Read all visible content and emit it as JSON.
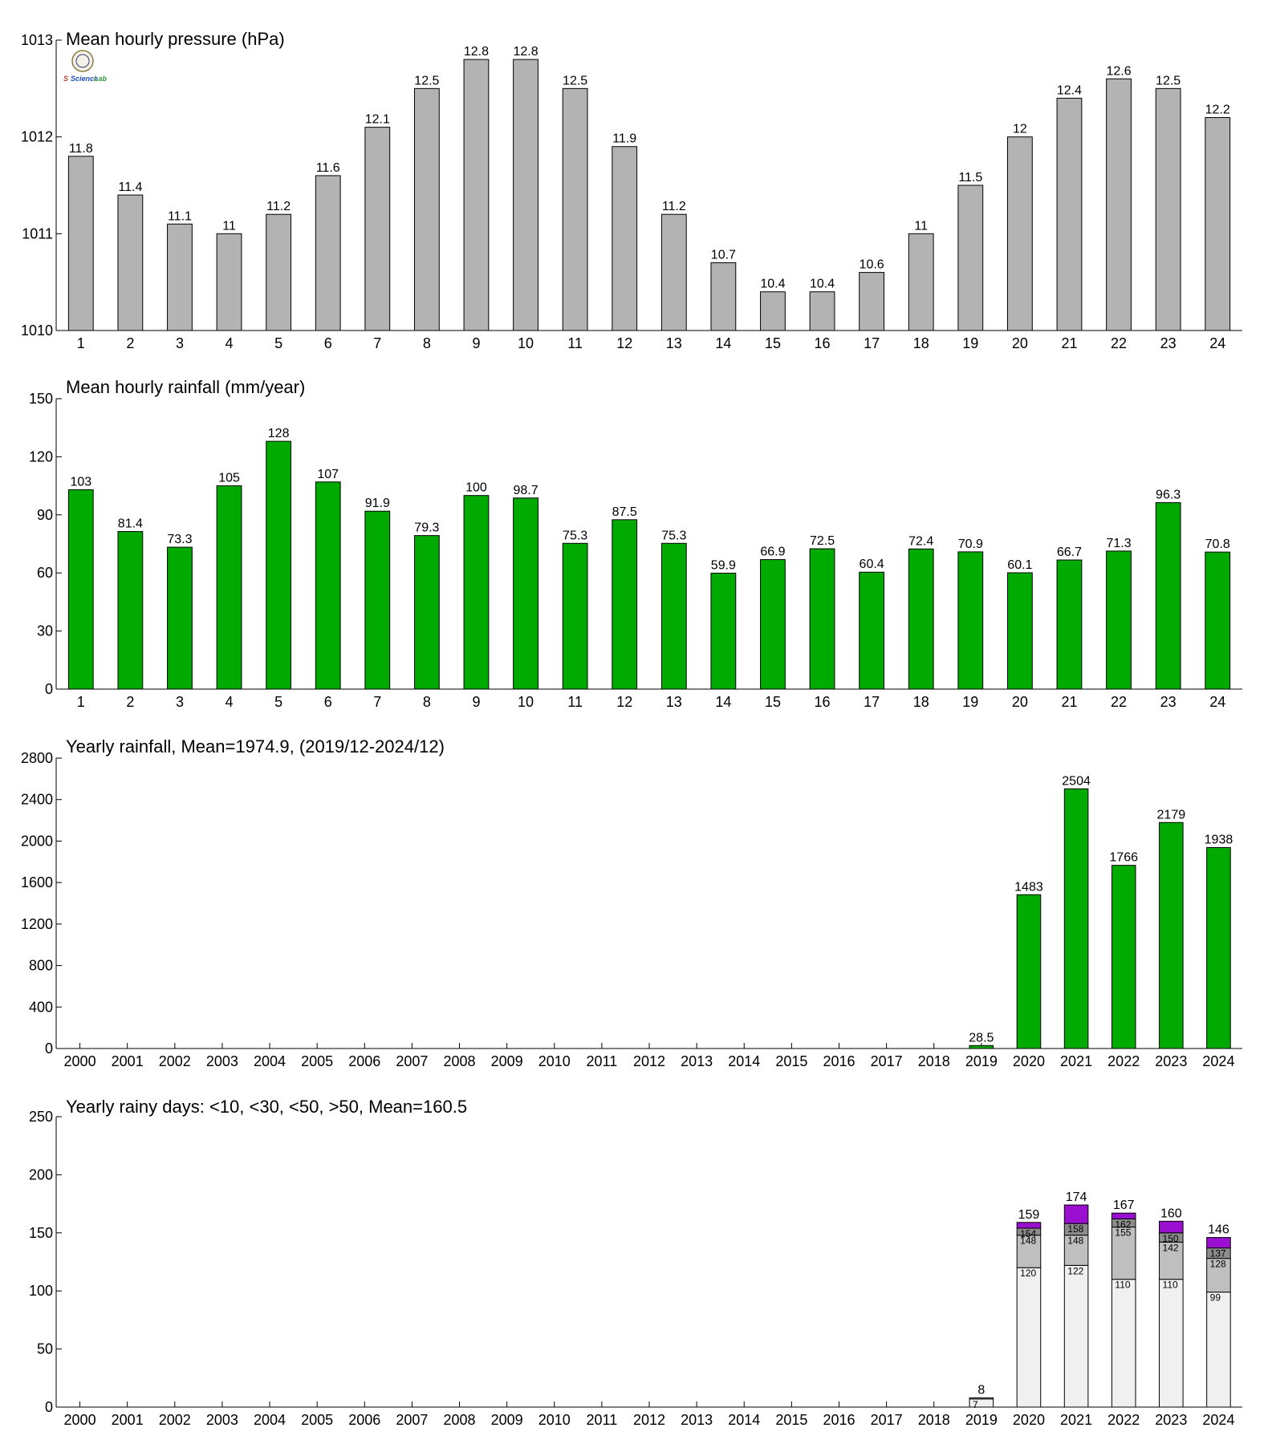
{
  "logo": {
    "name": "lab-logo",
    "text_left": "S",
    "text_mid": "Science",
    "text_right": "Lab",
    "color_left": "#c0392b",
    "color_mid": "#1f4fbf",
    "color_right": "#2e9b2e"
  },
  "colors": {
    "pressure": "#b3b3b3",
    "rain": "#00aa00",
    "days_lt10": "#f0f0f0",
    "days_lt30": "#bfbfbf",
    "days_lt50": "#8c8c8c",
    "days_gt50": "#9b10d0"
  },
  "chart_data": [
    {
      "id": "pressure",
      "type": "bar",
      "title": "Mean hourly pressure (hPa)",
      "categories": [
        "1",
        "2",
        "3",
        "4",
        "5",
        "6",
        "7",
        "8",
        "9",
        "10",
        "11",
        "12",
        "13",
        "14",
        "15",
        "16",
        "17",
        "18",
        "19",
        "20",
        "21",
        "22",
        "23",
        "24"
      ],
      "values": [
        1011.8,
        1011.4,
        1011.1,
        1011.0,
        1011.2,
        1011.6,
        1012.1,
        1012.5,
        1012.8,
        1012.8,
        1012.5,
        1011.9,
        1011.2,
        1010.7,
        1010.4,
        1010.4,
        1010.6,
        1011.0,
        1011.5,
        1012.0,
        1012.4,
        1012.6,
        1012.5,
        1012.2
      ],
      "value_labels": [
        "11.8",
        "11.4",
        "11.1",
        "11",
        "11.2",
        "11.6",
        "12.1",
        "12.5",
        "12.8",
        "12.8",
        "12.5",
        "11.9",
        "11.2",
        "10.7",
        "10.4",
        "10.4",
        "10.6",
        "11",
        "11.5",
        "12",
        "12.4",
        "12.6",
        "12.5",
        "12.2"
      ],
      "ylim": [
        1010,
        1013
      ],
      "yticks": [
        1010,
        1011,
        1012,
        1013
      ],
      "grid": false
    },
    {
      "id": "hourly_rain",
      "type": "bar",
      "title": "Mean hourly rainfall (mm/year)",
      "categories": [
        "1",
        "2",
        "3",
        "4",
        "5",
        "6",
        "7",
        "8",
        "9",
        "10",
        "11",
        "12",
        "13",
        "14",
        "15",
        "16",
        "17",
        "18",
        "19",
        "20",
        "21",
        "22",
        "23",
        "24"
      ],
      "values": [
        103,
        81.4,
        73.3,
        105,
        128,
        107,
        91.9,
        79.3,
        100,
        98.7,
        75.3,
        87.5,
        75.3,
        59.9,
        66.9,
        72.5,
        60.4,
        72.4,
        70.9,
        60.1,
        66.7,
        71.3,
        96.3,
        70.8
      ],
      "value_labels": [
        "103",
        "81.4",
        "73.3",
        "105",
        "128",
        "107",
        "91.9",
        "79.3",
        "100",
        "98.7",
        "75.3",
        "87.5",
        "75.3",
        "59.9",
        "66.9",
        "72.5",
        "60.4",
        "72.4",
        "70.9",
        "60.1",
        "66.7",
        "71.3",
        "96.3",
        "70.8"
      ],
      "ylim": [
        0,
        150
      ],
      "yticks": [
        0,
        30,
        60,
        90,
        120,
        150
      ],
      "grid": false
    },
    {
      "id": "yearly_rain",
      "type": "bar",
      "title": "Yearly rainfall, Mean=1974.9, (2019/12-2024/12)",
      "categories": [
        "2000",
        "2001",
        "2002",
        "2003",
        "2004",
        "2005",
        "2006",
        "2007",
        "2008",
        "2009",
        "2010",
        "2011",
        "2012",
        "2013",
        "2014",
        "2015",
        "2016",
        "2017",
        "2018",
        "2019",
        "2020",
        "2021",
        "2022",
        "2023",
        "2024"
      ],
      "values": [
        null,
        null,
        null,
        null,
        null,
        null,
        null,
        null,
        null,
        null,
        null,
        null,
        null,
        null,
        null,
        null,
        null,
        null,
        null,
        28.5,
        1483,
        2504,
        1766,
        2179,
        1938
      ],
      "value_labels": [
        "",
        "",
        "",
        "",
        "",
        "",
        "",
        "",
        "",
        "",
        "",
        "",
        "",
        "",
        "",
        "",
        "",
        "",
        "",
        "28.5",
        "1483",
        "2504",
        "1766",
        "2179",
        "1938"
      ],
      "ylim": [
        0,
        2800
      ],
      "yticks": [
        0,
        400,
        800,
        1200,
        1600,
        2000,
        2400,
        2800
      ],
      "grid": false
    },
    {
      "id": "rainy_days",
      "type": "bar",
      "stacked": true,
      "title": "Yearly rainy days: <10, <30, <50, >50, Mean=160.5",
      "categories": [
        "2000",
        "2001",
        "2002",
        "2003",
        "2004",
        "2005",
        "2006",
        "2007",
        "2008",
        "2009",
        "2010",
        "2011",
        "2012",
        "2013",
        "2014",
        "2015",
        "2016",
        "2017",
        "2018",
        "2019",
        "2020",
        "2021",
        "2022",
        "2023",
        "2024"
      ],
      "cumulative": [
        null,
        null,
        null,
        null,
        null,
        null,
        null,
        null,
        null,
        null,
        null,
        null,
        null,
        null,
        null,
        null,
        null,
        null,
        null,
        {
          "lt10": 7,
          "lt30": 8,
          "lt50": 8,
          "total": 8,
          "lt10_label": "7",
          "lt30_label": "",
          "lt50_label": "",
          "total_label": "8"
        },
        {
          "lt10": 120,
          "lt30": 148,
          "lt50": 154,
          "total": 159,
          "lt10_label": "120",
          "lt30_label": "148",
          "lt50_label": "154",
          "total_label": "159"
        },
        {
          "lt10": 122,
          "lt30": 148,
          "lt50": 158,
          "total": 174,
          "lt10_label": "122",
          "lt30_label": "148",
          "lt50_label": "158",
          "total_label": "174"
        },
        {
          "lt10": 110,
          "lt30": 155,
          "lt50": 162,
          "total": 167,
          "lt10_label": "110",
          "lt30_label": "155",
          "lt50_label": "162",
          "total_label": "167"
        },
        {
          "lt10": 110,
          "lt30": 142,
          "lt50": 150,
          "total": 160,
          "lt10_label": "110",
          "lt30_label": "142",
          "lt50_label": "150",
          "total_label": "160"
        },
        {
          "lt10": 99,
          "lt30": 128,
          "lt50": 137,
          "total": 146,
          "lt10_label": "99",
          "lt30_label": "128",
          "lt50_label": "137",
          "total_label": "146"
        }
      ],
      "ylim": [
        0,
        250
      ],
      "yticks": [
        0,
        50,
        100,
        150,
        200,
        250
      ],
      "grid": false
    }
  ]
}
